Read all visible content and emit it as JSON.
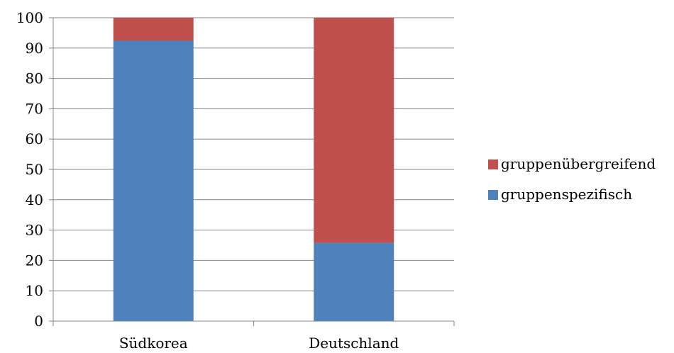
{
  "chart_data": {
    "type": "bar",
    "stacked": true,
    "categories": [
      "Südkorea",
      "Deutschland"
    ],
    "series": [
      {
        "name": "gruppenspezifisch",
        "values": [
          92.4,
          25.8
        ],
        "color": "#4F81BD"
      },
      {
        "name": "gruppenübergreifend",
        "values": [
          7.6,
          74.2
        ],
        "color": "#C0504D"
      }
    ],
    "title": "",
    "xlabel": "",
    "ylabel": "",
    "ylim": [
      0,
      100
    ],
    "yticks": [
      0,
      10,
      20,
      30,
      40,
      50,
      60,
      70,
      80,
      90,
      100
    ],
    "grid": true,
    "legend_position": "right",
    "legend_order": [
      "gruppenübergreifend",
      "gruppenspezifisch"
    ]
  }
}
